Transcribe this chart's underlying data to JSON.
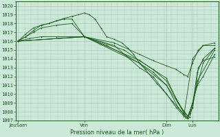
{
  "bg_color": "#cce8d8",
  "grid_color": "#a8c8b8",
  "line_color": "#1a5c1a",
  "marker_color": "#1a5c1a",
  "ylim": [
    1007,
    1020.5
  ],
  "xlabel": "Pression niveau de la mer( hPa )",
  "xtick_labels": [
    "JeuSam",
    "Ven",
    "Dim",
    "Lun"
  ],
  "xtick_pos": [
    0.0,
    0.345,
    0.77,
    0.905
  ],
  "lines": [
    [
      0.0,
      1016.0,
      0.06,
      1016.3,
      0.12,
      1016.5,
      0.2,
      1016.5,
      0.345,
      1016.5,
      0.5,
      1015.5,
      0.63,
      1013.0,
      0.7,
      1012.0,
      0.77,
      1010.0,
      0.82,
      1008.5,
      0.86,
      1007.5,
      0.905,
      1014.0,
      0.96,
      1015.5,
      1.02,
      1015.5
    ],
    [
      0.0,
      1016.0,
      0.04,
      1016.5,
      0.08,
      1017.2,
      0.12,
      1017.8,
      0.16,
      1018.0,
      0.2,
      1018.3,
      0.24,
      1018.6,
      0.28,
      1018.8,
      0.315,
      1019.0,
      0.345,
      1019.2,
      0.37,
      1019.0,
      0.4,
      1018.5,
      0.43,
      1017.5,
      0.46,
      1016.5,
      0.5,
      1016.2,
      0.54,
      1015.8,
      0.57,
      1015.2,
      0.6,
      1014.5,
      0.63,
      1013.5,
      0.66,
      1012.8,
      0.69,
      1012.0,
      0.72,
      1011.2,
      0.75,
      1010.5,
      0.77,
      1010.0,
      0.8,
      1009.2,
      0.83,
      1008.5,
      0.855,
      1007.8,
      0.87,
      1007.3,
      0.88,
      1007.2,
      0.89,
      1007.4,
      0.905,
      1008.5,
      0.92,
      1010.5,
      0.935,
      1013.0,
      0.96,
      1013.8,
      1.02,
      1014.2
    ],
    [
      0.0,
      1016.0,
      0.04,
      1016.8,
      0.08,
      1017.5,
      0.12,
      1017.8,
      0.16,
      1018.0,
      0.2,
      1018.3,
      0.24,
      1018.5,
      0.28,
      1018.5,
      0.345,
      1016.5,
      0.46,
      1015.5,
      0.55,
      1014.5,
      0.63,
      1013.5,
      0.7,
      1012.5,
      0.77,
      1011.0,
      0.83,
      1009.0,
      0.87,
      1007.8,
      0.88,
      1007.5,
      0.89,
      1007.8,
      0.905,
      1009.0,
      0.93,
      1011.0,
      0.96,
      1012.0,
      1.02,
      1014.5
    ],
    [
      0.0,
      1016.0,
      0.345,
      1016.5,
      0.55,
      1015.0,
      0.63,
      1013.8,
      0.7,
      1012.8,
      0.77,
      1011.5,
      0.82,
      1009.5,
      0.86,
      1008.0,
      0.88,
      1007.5,
      0.905,
      1008.8,
      0.93,
      1012.5,
      0.96,
      1014.0,
      1.02,
      1015.2
    ],
    [
      0.0,
      1016.0,
      0.345,
      1016.5,
      0.63,
      1013.8,
      0.77,
      1011.8,
      0.83,
      1009.0,
      0.87,
      1007.5,
      0.88,
      1007.3,
      0.905,
      1008.5,
      0.93,
      1011.5,
      1.02,
      1015.0
    ],
    [
      0.0,
      1016.0,
      0.345,
      1016.5,
      0.63,
      1013.5,
      0.77,
      1011.0,
      0.83,
      1008.5,
      0.87,
      1007.5,
      0.88,
      1007.3,
      0.905,
      1009.0,
      0.96,
      1013.5,
      1.02,
      1015.2
    ],
    [
      0.0,
      1016.0,
      0.04,
      1016.5,
      0.08,
      1017.0,
      0.12,
      1017.5,
      0.2,
      1017.8,
      0.28,
      1018.0,
      0.345,
      1016.5,
      0.5,
      1015.8,
      0.63,
      1014.5,
      0.7,
      1013.8,
      0.77,
      1013.2,
      0.82,
      1012.8,
      0.84,
      1012.5,
      0.86,
      1012.2,
      0.88,
      1012.0,
      0.905,
      1013.5,
      0.935,
      1015.0,
      0.96,
      1015.5,
      1.02,
      1015.8
    ]
  ]
}
